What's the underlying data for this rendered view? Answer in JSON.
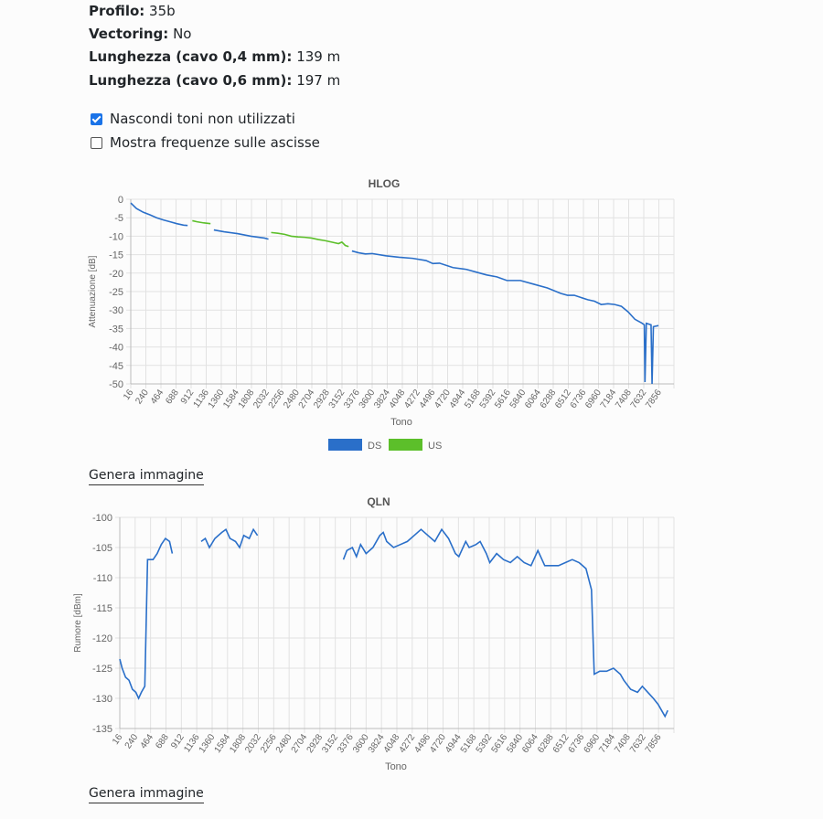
{
  "info": [
    {
      "label": "Profilo",
      "value": "35b"
    },
    {
      "label": "Vectoring",
      "value": "No"
    },
    {
      "label": "Lunghezza (cavo 0,4 mm)",
      "value": "139 m"
    },
    {
      "label": "Lunghezza (cavo 0,6 mm)",
      "value": "197 m"
    }
  ],
  "options": [
    {
      "label": "Nascondi toni non utilizzati",
      "checked": true
    },
    {
      "label": "Mostra frequenze sulle ascisse",
      "checked": false
    }
  ],
  "generate_label": "Genera immagine",
  "colors": {
    "ds": "#2a6fc9",
    "us": "#5cbf2a"
  },
  "chart_data": [
    {
      "type": "line",
      "title": "HLOG",
      "xlabel": "Tono",
      "ylabel": "Attenuazione [dB]",
      "xlim": [
        16,
        8080
      ],
      "ylim": [
        -50,
        0
      ],
      "yticks": [
        0,
        -5,
        -10,
        -15,
        -20,
        -25,
        -30,
        -35,
        -40,
        -45,
        -50
      ],
      "xticks": [
        16,
        240,
        464,
        688,
        912,
        1136,
        1360,
        1584,
        1808,
        2032,
        2256,
        2480,
        2704,
        2928,
        3152,
        3376,
        3600,
        3824,
        4048,
        4272,
        4496,
        4720,
        4944,
        5168,
        5392,
        5616,
        5840,
        6064,
        6288,
        6512,
        6736,
        6960,
        7184,
        7408,
        7632,
        7856
      ],
      "legend": [
        {
          "name": "DS",
          "color": "#2a6fc9"
        },
        {
          "name": "US",
          "color": "#5cbf2a"
        }
      ],
      "legend_position": "bottom",
      "series": [
        {
          "name": "DS",
          "color": "#2a6fc9",
          "segments": [
            [
              [
                16,
                -1
              ],
              [
                100,
                -2.5
              ],
              [
                200,
                -3.5
              ],
              [
                300,
                -4.2
              ],
              [
                400,
                -5
              ],
              [
                500,
                -5.6
              ],
              [
                600,
                -6.1
              ],
              [
                700,
                -6.6
              ],
              [
                800,
                -7
              ],
              [
                860,
                -7.1
              ]
            ],
            [
              [
                1250,
                -8.3
              ],
              [
                1400,
                -8.8
              ],
              [
                1600,
                -9.3
              ],
              [
                1800,
                -10
              ],
              [
                2000,
                -10.5
              ],
              [
                2060,
                -10.8
              ]
            ],
            [
              [
                3300,
                -14
              ],
              [
                3400,
                -14.5
              ],
              [
                3500,
                -14.8
              ],
              [
                3600,
                -14.7
              ],
              [
                3800,
                -15.3
              ],
              [
                4000,
                -15.7
              ],
              [
                4200,
                -16
              ],
              [
                4400,
                -16.6
              ],
              [
                4500,
                -17.4
              ],
              [
                4600,
                -17.3
              ],
              [
                4800,
                -18.5
              ],
              [
                5000,
                -19
              ],
              [
                5200,
                -20
              ],
              [
                5300,
                -20.5
              ],
              [
                5450,
                -21
              ],
              [
                5600,
                -22
              ],
              [
                5800,
                -22
              ],
              [
                6000,
                -23
              ],
              [
                6200,
                -24
              ],
              [
                6400,
                -25.5
              ],
              [
                6500,
                -26
              ],
              [
                6600,
                -26
              ],
              [
                6800,
                -27.2
              ],
              [
                6900,
                -27.6
              ],
              [
                7000,
                -28.5
              ],
              [
                7100,
                -28.3
              ],
              [
                7200,
                -28.5
              ],
              [
                7300,
                -29
              ],
              [
                7400,
                -30.5
              ],
              [
                7500,
                -32.5
              ],
              [
                7600,
                -33.5
              ],
              [
                7640,
                -34
              ],
              [
                7650,
                -49.5
              ],
              [
                7670,
                -33.6
              ],
              [
                7740,
                -34
              ],
              [
                7755,
                -50
              ],
              [
                7775,
                -34.5
              ],
              [
                7850,
                -34.2
              ]
            ]
          ]
        },
        {
          "name": "US",
          "color": "#5cbf2a",
          "segments": [
            [
              [
                930,
                -5.8
              ],
              [
                1000,
                -6.1
              ],
              [
                1100,
                -6.4
              ],
              [
                1200,
                -6.6
              ]
            ],
            [
              [
                2100,
                -9
              ],
              [
                2200,
                -9.2
              ],
              [
                2300,
                -9.5
              ],
              [
                2400,
                -10
              ],
              [
                2500,
                -10.2
              ],
              [
                2600,
                -10.3
              ],
              [
                2700,
                -10.5
              ],
              [
                2800,
                -10.9
              ],
              [
                2900,
                -11.2
              ],
              [
                3000,
                -11.6
              ],
              [
                3100,
                -12
              ],
              [
                3150,
                -11.6
              ],
              [
                3200,
                -12.5
              ],
              [
                3250,
                -12.8
              ]
            ]
          ]
        }
      ]
    },
    {
      "type": "line",
      "title": "QLN",
      "xlabel": "Tono",
      "ylabel": "Rumore [dBm]",
      "xlim": [
        16,
        8080
      ],
      "ylim": [
        -135,
        -100
      ],
      "yticks": [
        -100,
        -105,
        -110,
        -115,
        -120,
        -125,
        -130,
        -135
      ],
      "xticks": [
        16,
        240,
        464,
        688,
        912,
        1136,
        1360,
        1584,
        1808,
        2032,
        2256,
        2480,
        2704,
        2928,
        3152,
        3376,
        3600,
        3824,
        4048,
        4272,
        4496,
        4720,
        4944,
        5168,
        5392,
        5616,
        5840,
        6064,
        6288,
        6512,
        6736,
        6960,
        7184,
        7408,
        7632,
        7856
      ],
      "series": [
        {
          "name": "DS",
          "color": "#2a6fc9",
          "segments": [
            [
              [
                16,
                -123.5
              ],
              [
                50,
                -125
              ],
              [
                100,
                -126.5
              ],
              [
                150,
                -127
              ],
              [
                200,
                -128.5
              ],
              [
                250,
                -129
              ],
              [
                290,
                -130
              ],
              [
                330,
                -129
              ],
              [
                380,
                -128
              ],
              [
                420,
                -107
              ],
              [
                500,
                -107
              ],
              [
                560,
                -106
              ],
              [
                620,
                -104.5
              ],
              [
                680,
                -103.5
              ],
              [
                740,
                -104
              ],
              [
                780,
                -106
              ]
            ],
            [
              [
                1200,
                -104
              ],
              [
                1260,
                -103.5
              ],
              [
                1320,
                -105
              ],
              [
                1400,
                -103.5
              ],
              [
                1500,
                -102.5
              ],
              [
                1560,
                -102
              ],
              [
                1620,
                -103.5
              ],
              [
                1700,
                -104
              ],
              [
                1760,
                -105
              ],
              [
                1820,
                -103
              ],
              [
                1900,
                -103.5
              ],
              [
                1960,
                -102
              ],
              [
                2020,
                -103
              ]
            ],
            [
              [
                3270,
                -107
              ],
              [
                3320,
                -105.5
              ],
              [
                3400,
                -105
              ],
              [
                3460,
                -106.5
              ],
              [
                3520,
                -104.5
              ],
              [
                3600,
                -106
              ],
              [
                3700,
                -105
              ],
              [
                3800,
                -103
              ],
              [
                3850,
                -102.5
              ],
              [
                3900,
                -104
              ],
              [
                4000,
                -105
              ],
              [
                4100,
                -104.5
              ],
              [
                4200,
                -104
              ],
              [
                4300,
                -103
              ],
              [
                4400,
                -102
              ],
              [
                4500,
                -103
              ],
              [
                4600,
                -104
              ],
              [
                4700,
                -102
              ],
              [
                4800,
                -103.5
              ],
              [
                4900,
                -106
              ],
              [
                4950,
                -106.5
              ],
              [
                5050,
                -104
              ],
              [
                5100,
                -105
              ],
              [
                5200,
                -104.5
              ],
              [
                5260,
                -104
              ],
              [
                5350,
                -106
              ],
              [
                5400,
                -107.5
              ],
              [
                5500,
                -106
              ],
              [
                5600,
                -107
              ],
              [
                5700,
                -107.5
              ],
              [
                5800,
                -106.5
              ],
              [
                5900,
                -107.5
              ],
              [
                6000,
                -108
              ],
              [
                6100,
                -105.5
              ],
              [
                6200,
                -108
              ],
              [
                6300,
                -108
              ],
              [
                6400,
                -108
              ],
              [
                6500,
                -107.5
              ],
              [
                6600,
                -107
              ],
              [
                6700,
                -107.5
              ],
              [
                6800,
                -108.5
              ],
              [
                6880,
                -112
              ],
              [
                6920,
                -126
              ],
              [
                7000,
                -125.5
              ],
              [
                7100,
                -125.5
              ],
              [
                7200,
                -125
              ],
              [
                7300,
                -126
              ],
              [
                7350,
                -127
              ],
              [
                7450,
                -128.5
              ],
              [
                7550,
                -129
              ],
              [
                7620,
                -128
              ],
              [
                7700,
                -129
              ],
              [
                7780,
                -130
              ],
              [
                7850,
                -131
              ],
              [
                7900,
                -132
              ],
              [
                7950,
                -133
              ],
              [
                7990,
                -132
              ]
            ]
          ]
        }
      ]
    }
  ]
}
